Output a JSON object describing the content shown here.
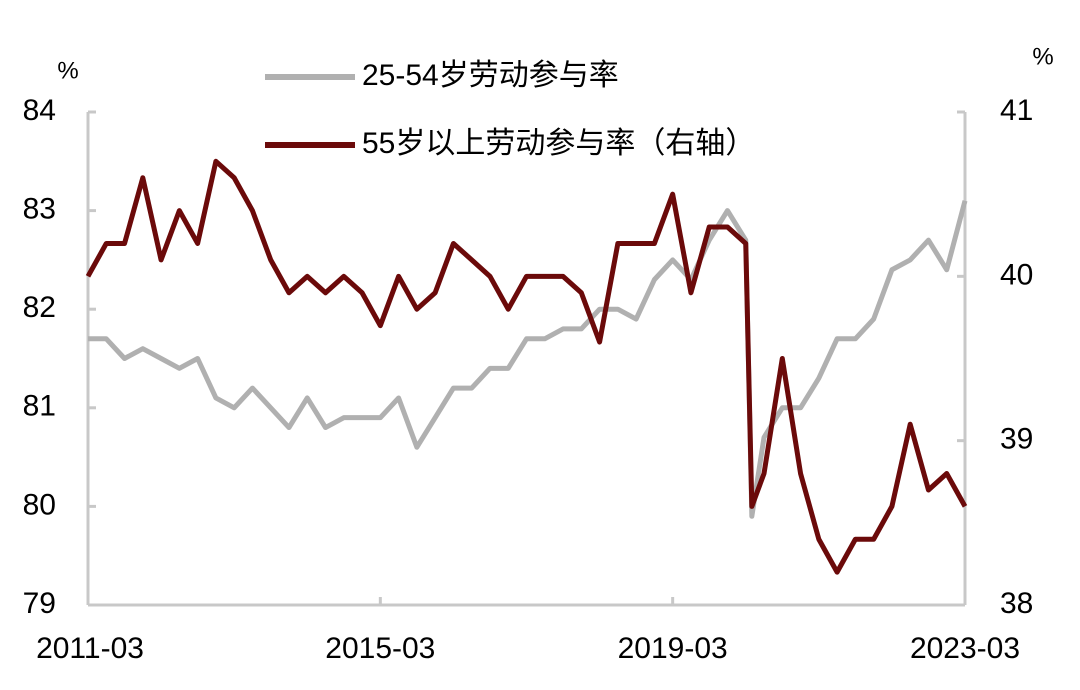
{
  "chart_data": {
    "type": "line",
    "y_unit": "%",
    "y2_unit": "%",
    "x": [
      "2011-03",
      "2011-06",
      "2011-09",
      "2011-12",
      "2012-03",
      "2012-06",
      "2012-09",
      "2012-12",
      "2013-03",
      "2013-06",
      "2013-09",
      "2013-12",
      "2014-03",
      "2014-06",
      "2014-09",
      "2014-12",
      "2015-03",
      "2015-06",
      "2015-09",
      "2015-12",
      "2016-03",
      "2016-06",
      "2016-09",
      "2016-12",
      "2017-03",
      "2017-06",
      "2017-09",
      "2017-12",
      "2018-03",
      "2018-06",
      "2018-09",
      "2018-12",
      "2019-03",
      "2019-06",
      "2019-09",
      "2019-12",
      "2020-03",
      "2020-04",
      "2020-06",
      "2020-09",
      "2020-12",
      "2021-03",
      "2021-06",
      "2021-09",
      "2021-12",
      "2022-03",
      "2022-06",
      "2022-09",
      "2022-12",
      "2023-03"
    ],
    "series": [
      {
        "name": "25-54岁劳动参与率",
        "color": "#b0b0b0",
        "axis": "y",
        "values": [
          81.7,
          81.7,
          81.5,
          81.6,
          81.5,
          81.4,
          81.5,
          81.1,
          81.0,
          81.2,
          81.0,
          80.8,
          81.1,
          80.8,
          80.9,
          80.9,
          80.9,
          81.1,
          80.6,
          80.9,
          81.2,
          81.2,
          81.4,
          81.4,
          81.7,
          81.7,
          81.8,
          81.8,
          82.0,
          82.0,
          81.9,
          82.3,
          82.5,
          82.3,
          82.7,
          83.0,
          82.7,
          79.9,
          80.7,
          81.0,
          81.0,
          81.3,
          81.7,
          81.7,
          81.9,
          82.4,
          82.5,
          82.7,
          82.4,
          83.1
        ]
      },
      {
        "name": "55岁以上劳动参与率（右轴）",
        "color": "#6b0a0a",
        "axis": "y2",
        "values": [
          40.0,
          40.2,
          40.2,
          40.6,
          40.1,
          40.4,
          40.2,
          40.7,
          40.6,
          40.4,
          40.1,
          39.9,
          40.0,
          39.9,
          40.0,
          39.9,
          39.7,
          40.0,
          39.8,
          39.9,
          40.2,
          40.1,
          40.0,
          39.8,
          40.0,
          40.0,
          40.0,
          39.9,
          39.6,
          40.2,
          40.2,
          40.2,
          40.5,
          39.9,
          40.3,
          40.3,
          40.2,
          38.6,
          38.8,
          39.5,
          38.8,
          38.4,
          38.2,
          38.4,
          38.4,
          38.6,
          39.1,
          38.7,
          38.8,
          38.6
        ]
      }
    ],
    "ylim": [
      79,
      84
    ],
    "yticks": [
      79,
      80,
      81,
      82,
      83,
      84
    ],
    "y2lim": [
      38,
      41
    ],
    "y2ticks": [
      38,
      39,
      40,
      41
    ],
    "xlim": [
      "2011-03",
      "2023-03"
    ],
    "xticks": [
      "2011-03",
      "2015-03",
      "2019-03",
      "2023-03"
    ]
  }
}
